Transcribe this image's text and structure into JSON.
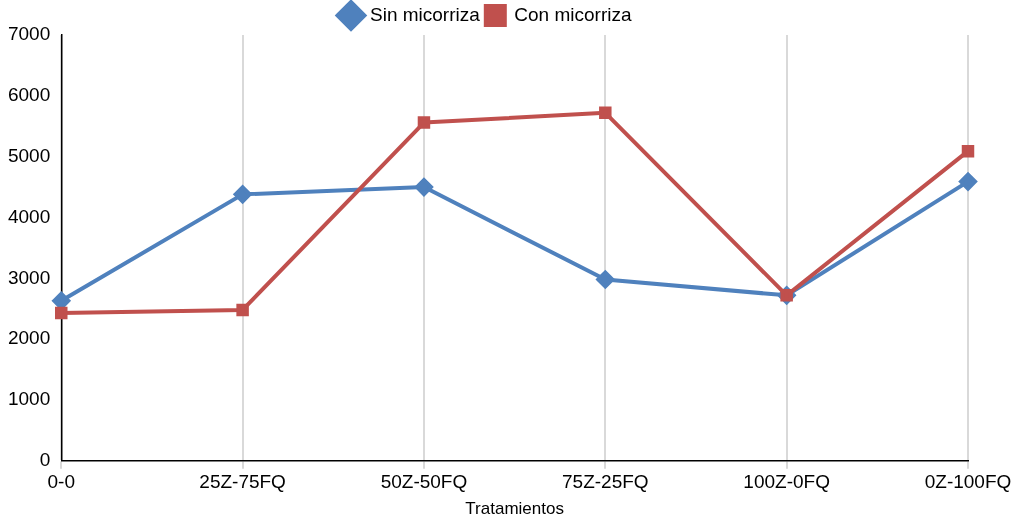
{
  "chart_data": {
    "type": "line",
    "xlabel": "Tratamientos",
    "categories": [
      "0-0",
      "25Z-75FQ",
      "50Z-50FQ",
      "75Z-25FQ",
      "100Z-0FQ",
      "0Z-100FQ"
    ],
    "series": [
      {
        "name": "Sin micorriza",
        "color": "#4f81bd",
        "marker": "diamond",
        "values": [
          2630,
          4380,
          4500,
          2980,
          2720,
          4590
        ]
      },
      {
        "name": "Con micorriza",
        "color": "#c0504d",
        "marker": "square",
        "values": [
          2430,
          2480,
          5560,
          5720,
          2720,
          5090
        ]
      }
    ],
    "ylim": [
      0,
      7000
    ],
    "yticks": [
      0,
      1000,
      2000,
      3000,
      4000,
      5000,
      6000,
      7000
    ],
    "grid": "x",
    "legend": "top",
    "line_style": "solid"
  }
}
